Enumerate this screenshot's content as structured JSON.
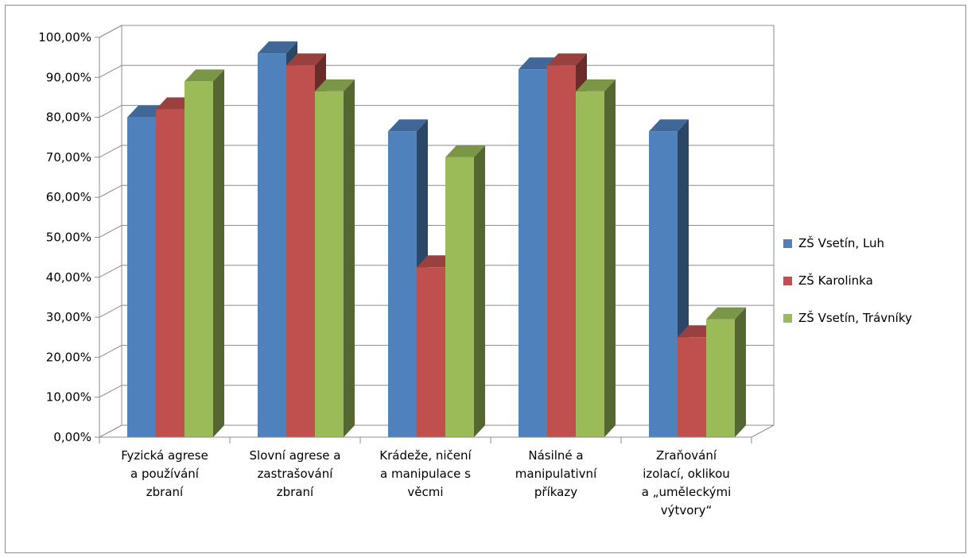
{
  "chart_data": {
    "type": "bar",
    "title": "",
    "xlabel": "",
    "ylabel": "",
    "ylim": [
      0,
      100
    ],
    "y_ticks": [
      "0,00%",
      "10,00%",
      "20,00%",
      "30,00%",
      "40,00%",
      "50,00%",
      "60,00%",
      "70,00%",
      "80,00%",
      "90,00%",
      "100,00%"
    ],
    "grid": true,
    "legend_position": "right",
    "categories": [
      [
        "Fyzická agrese",
        "a používání",
        "zbraní"
      ],
      [
        "Slovní agrese a",
        "zastrašování",
        "zbraní"
      ],
      [
        "Krádeže, ničení",
        "a manipulace s",
        "věcmi"
      ],
      [
        "Násilné a",
        "manipulativní",
        "příkazy"
      ],
      [
        "Zraňování",
        "izolací, oklikou",
        "a „uměleckými",
        "výtvory“"
      ]
    ],
    "series": [
      {
        "name": "ZŠ Vsetín, Luh",
        "color": "#4f81bd",
        "values": [
          80,
          96,
          76.5,
          92,
          76.5
        ]
      },
      {
        "name": "ZŠ Karolinka",
        "color": "#c0504d",
        "values": [
          82,
          93,
          42.5,
          93,
          25
        ]
      },
      {
        "name": "ZŠ Vsetín, Trávníky",
        "color": "#9bbb59",
        "values": [
          89,
          86.5,
          70,
          86.5,
          29.5
        ]
      }
    ]
  }
}
